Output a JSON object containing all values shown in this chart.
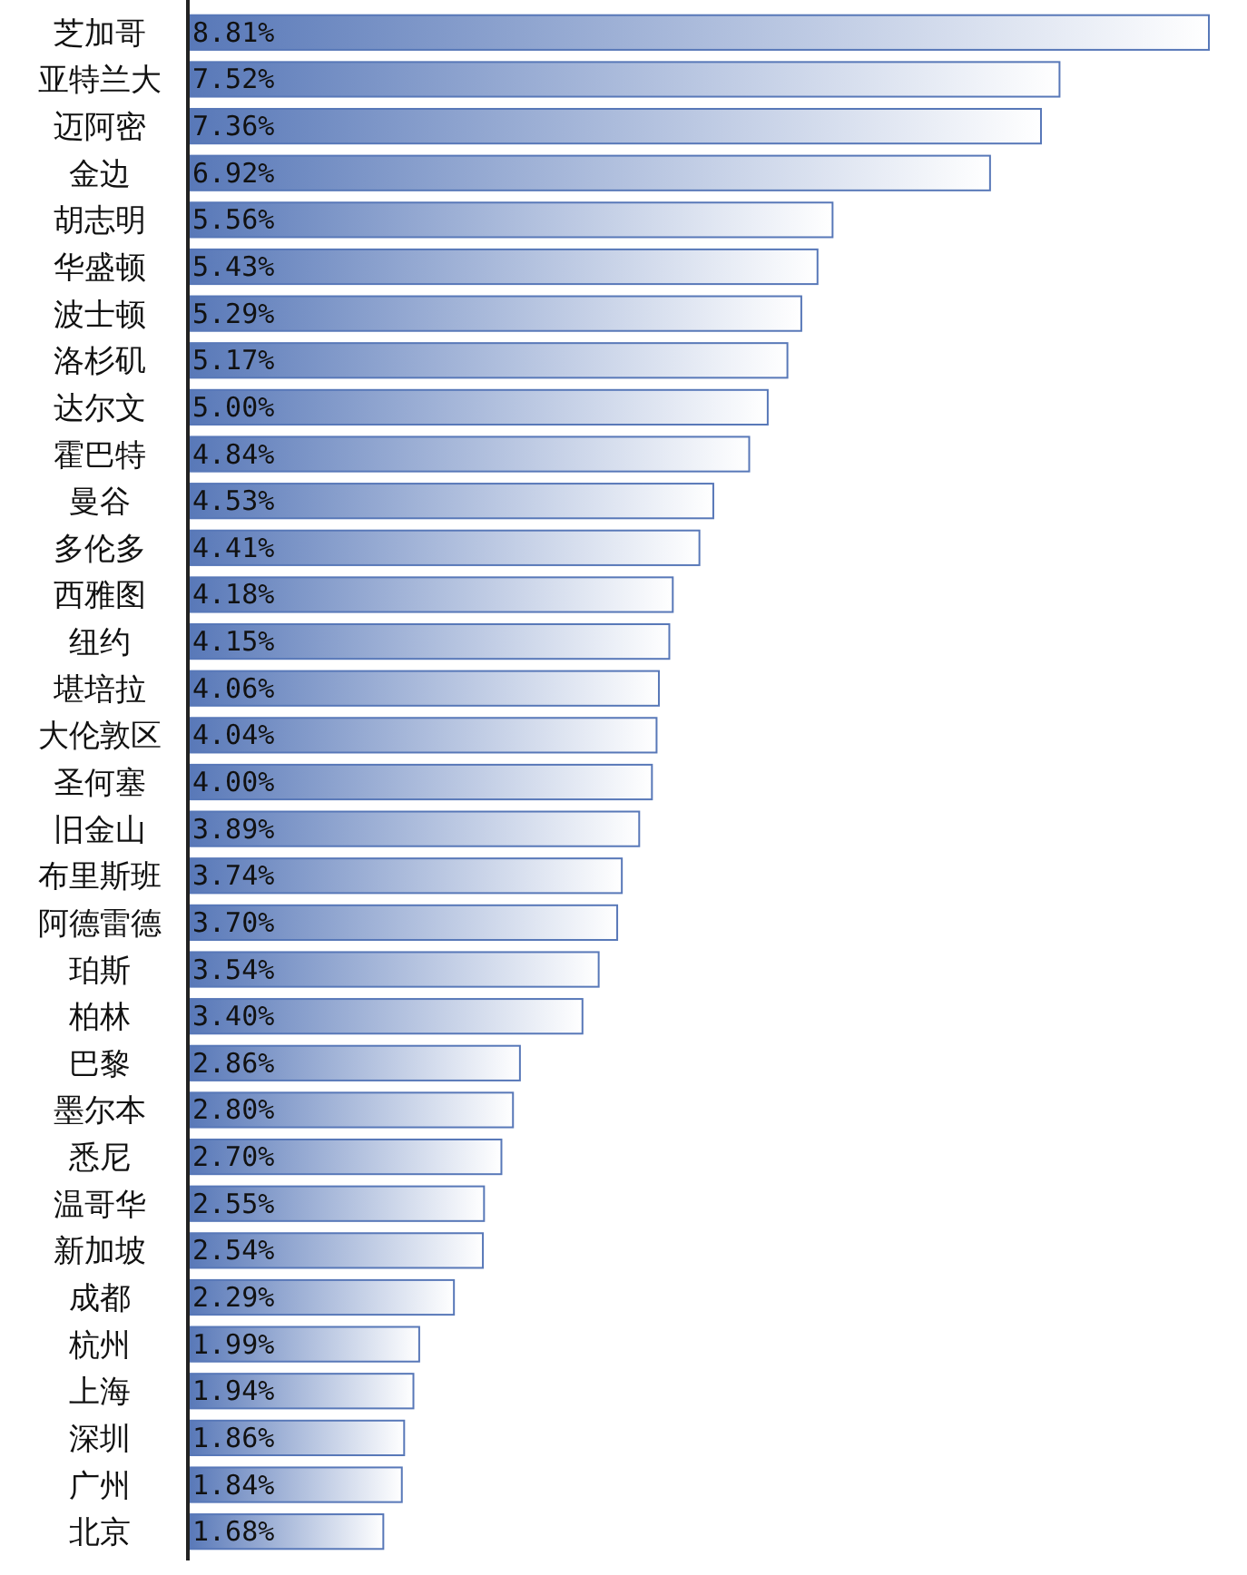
{
  "chart_data": {
    "type": "bar",
    "orientation": "horizontal",
    "data_labels": true,
    "color": "#5878b8",
    "categories": [
      "芝加哥",
      "亚特兰大",
      "迈阿密",
      "金边",
      "胡志明",
      "华盛顿",
      "波士顿",
      "洛杉矶",
      "达尔文",
      "霍巴特",
      "曼谷",
      "多伦多",
      "西雅图",
      "纽约",
      "堪培拉",
      "大伦敦区",
      "圣何塞",
      "旧金山",
      "布里斯班",
      "阿德雷德",
      "珀斯",
      "柏林",
      "巴黎",
      "墨尔本",
      "悉尼",
      "温哥华",
      "新加坡",
      "成都",
      "杭州",
      "上海",
      "深圳",
      "广州",
      "北京"
    ],
    "values": [
      8.81,
      7.52,
      7.36,
      6.92,
      5.56,
      5.43,
      5.29,
      5.17,
      5.0,
      4.84,
      4.53,
      4.41,
      4.18,
      4.15,
      4.06,
      4.04,
      4.0,
      3.89,
      3.74,
      3.7,
      3.54,
      3.4,
      2.86,
      2.8,
      2.7,
      2.55,
      2.54,
      2.29,
      1.99,
      1.94,
      1.86,
      1.84,
      1.68
    ],
    "value_labels": [
      "8.81%",
      "7.52%",
      "7.36%",
      "6.92%",
      "5.56%",
      "5.43%",
      "5.29%",
      "5.17%",
      "5.00%",
      "4.84%",
      "4.53%",
      "4.41%",
      "4.18%",
      "4.15%",
      "4.06%",
      "4.04%",
      "4.00%",
      "3.89%",
      "3.74%",
      "3.70%",
      "3.54%",
      "3.40%",
      "2.86%",
      "2.80%",
      "2.70%",
      "2.55%",
      "2.54%",
      "2.29%",
      "1.99%",
      "1.94%",
      "1.86%",
      "1.84%",
      "1.68%"
    ]
  }
}
